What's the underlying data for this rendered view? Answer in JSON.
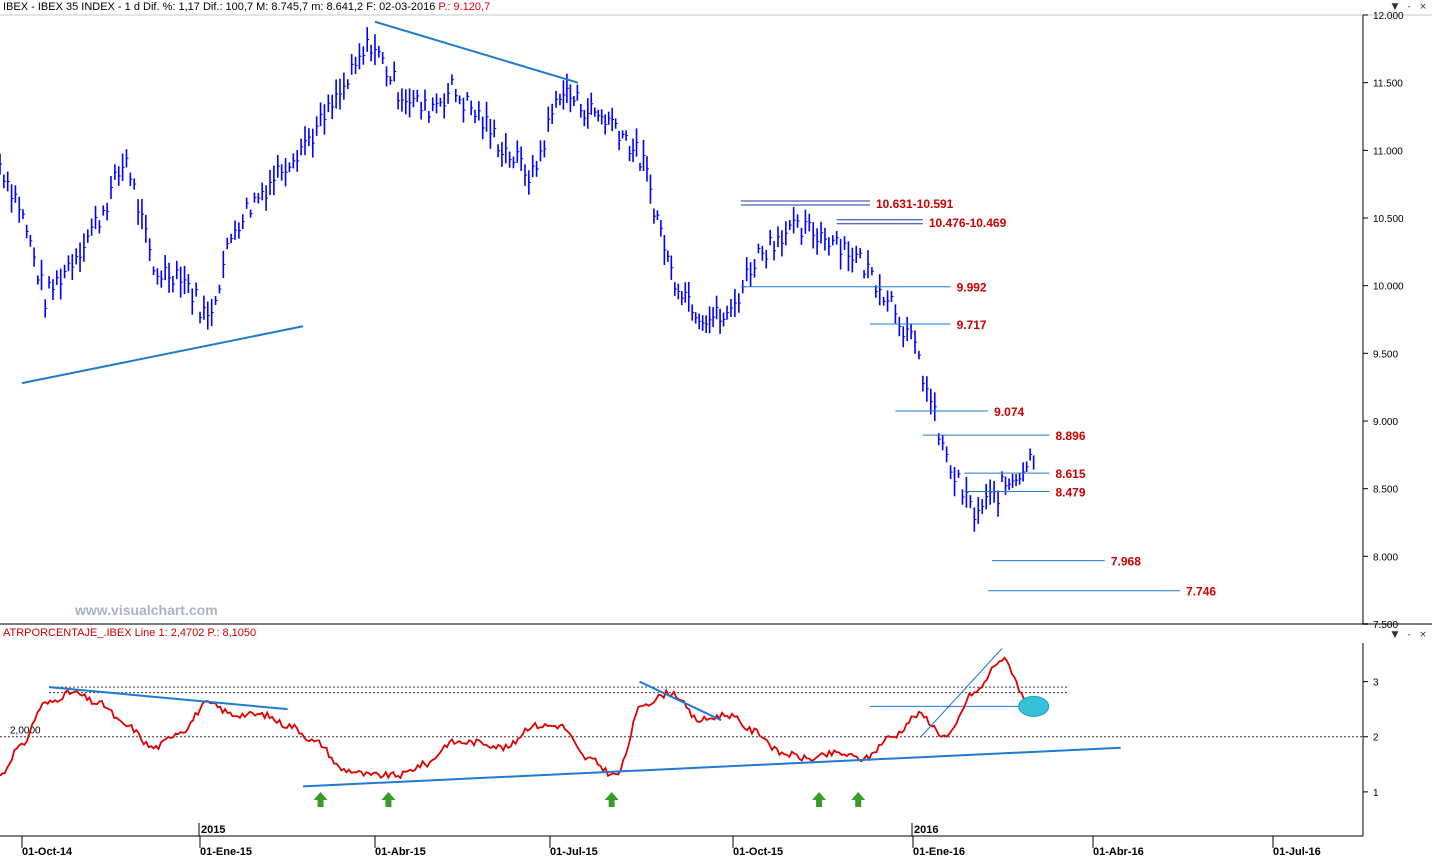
{
  "price_panel": {
    "header": {
      "symbol": "IBEX - IBEX 35 INDEX - 1 d",
      "dif_pct": "Dif. %: 1,17",
      "dif": "Dif.: 100,7",
      "max": "M: 8.745,7",
      "min": "m: 8.641,2",
      "date": "F: 02-03-2016",
      "p": "P.: 9.120,7"
    },
    "watermark": "www.visualchart.com"
  },
  "indicator_panel": {
    "header": {
      "name": "ATRPORCENTAJE_.IBEX",
      "line": "Line 1: 2,4702",
      "p": "P.: 8,1050"
    },
    "ref_line_label": "2,0000"
  },
  "window_buttons": [
    "▼",
    "-",
    "×"
  ],
  "colors": {
    "bars": "#0000ff",
    "trendline": "#1e7ad2",
    "level_label": "#cc0000",
    "indicator": "#e00000",
    "arrow": "#3a9a2a",
    "highlight": "#35c1d6"
  },
  "chart_data": [
    {
      "type": "bar",
      "subtype": "ohlc",
      "title": "IBEX - IBEX 35 INDEX - 1 d",
      "x": [
        "2014-09-15",
        "2014-09-29",
        "2014-10-13",
        "2014-10-27",
        "2014-11-10",
        "2014-11-24",
        "2014-12-08",
        "2014-12-22",
        "2015-01-05",
        "2015-01-19",
        "2015-02-02",
        "2015-02-16",
        "2015-03-02",
        "2015-03-16",
        "2015-03-30",
        "2015-04-13",
        "2015-04-27",
        "2015-05-11",
        "2015-05-25",
        "2015-06-08",
        "2015-06-22",
        "2015-07-06",
        "2015-07-20",
        "2015-08-03",
        "2015-08-17",
        "2015-08-31",
        "2015-09-14",
        "2015-09-28",
        "2015-10-12",
        "2015-10-26",
        "2015-11-09",
        "2015-11-23",
        "2015-12-07",
        "2015-12-21",
        "2016-01-04",
        "2016-01-18",
        "2016-02-01",
        "2016-02-15",
        "2016-03-02"
      ],
      "close": [
        10900,
        10600,
        9900,
        10200,
        10500,
        10950,
        10100,
        10100,
        9750,
        10450,
        10700,
        10950,
        11150,
        11450,
        11800,
        11450,
        11300,
        11450,
        11250,
        11000,
        10800,
        11450,
        11300,
        11200,
        10900,
        10100,
        9800,
        9750,
        10200,
        10400,
        10400,
        10350,
        10150,
        9900,
        9450,
        8700,
        8300,
        8500,
        8745.7
      ],
      "ylim": [
        7500,
        12000
      ],
      "y_ticks": [
        "7.500",
        "8.000",
        "8.500",
        "9.000",
        "9.500",
        "10.000",
        "10.500",
        "11.000",
        "11.500",
        "12.000"
      ],
      "x_ticks": [
        "01-Oct-14",
        "01-Ene-15",
        "01-Abr-15",
        "01-Jul-15",
        "01-Oct-15",
        "01-Ene-16",
        "01-Abr-16",
        "01-Jul-16"
      ],
      "year_labels": [
        "2015",
        "2016"
      ],
      "levels": [
        {
          "label": "10.631-10.591",
          "value": 10611
        },
        {
          "label": "10.476-10.469",
          "value": 10472
        },
        {
          "label": "9.992",
          "value": 9992
        },
        {
          "label": "9.717",
          "value": 9717
        },
        {
          "label": "9.074",
          "value": 9074
        },
        {
          "label": "8.896",
          "value": 8896
        },
        {
          "label": "8.615",
          "value": 8615
        },
        {
          "label": "8.479",
          "value": 8479
        },
        {
          "label": "7.968",
          "value": 7968
        },
        {
          "label": "7.746",
          "value": 7746
        }
      ],
      "trendlines": [
        {
          "from": [
            "2014-10-01",
            9280
          ],
          "to": [
            "2015-02-23",
            9700
          ]
        },
        {
          "from": [
            "2015-04-01",
            11950
          ],
          "to": [
            "2015-07-15",
            11500
          ]
        }
      ]
    },
    {
      "type": "line",
      "title": "ATRPORCENTAJE_.IBEX",
      "x": [
        "2014-09-15",
        "2014-09-29",
        "2014-10-13",
        "2014-10-27",
        "2014-11-10",
        "2014-11-24",
        "2014-12-08",
        "2014-12-22",
        "2015-01-05",
        "2015-01-19",
        "2015-02-02",
        "2015-02-16",
        "2015-03-02",
        "2015-03-16",
        "2015-03-30",
        "2015-04-13",
        "2015-04-27",
        "2015-05-11",
        "2015-05-25",
        "2015-06-08",
        "2015-06-22",
        "2015-07-06",
        "2015-07-20",
        "2015-08-03",
        "2015-08-17",
        "2015-08-31",
        "2015-09-14",
        "2015-09-28",
        "2015-10-12",
        "2015-10-26",
        "2015-11-09",
        "2015-11-23",
        "2015-12-07",
        "2015-12-21",
        "2016-01-04",
        "2016-01-18",
        "2016-02-01",
        "2016-02-15",
        "2016-03-02"
      ],
      "series": [
        {
          "values": [
            1.3,
            1.8,
            2.6,
            2.8,
            2.6,
            2.2,
            1.8,
            2.1,
            2.6,
            2.4,
            2.4,
            2.2,
            1.9,
            1.4,
            1.3,
            1.3,
            1.5,
            1.9,
            1.9,
            1.8,
            2.2,
            2.2,
            1.6,
            1.3,
            2.6,
            2.8,
            2.3,
            2.4,
            2.1,
            1.7,
            1.6,
            1.7,
            1.6,
            2.0,
            2.4,
            2.0,
            2.8,
            3.4,
            2.47
          ]
        }
      ],
      "ylim": [
        0.2,
        3.7
      ],
      "y_ticks": [
        "1",
        "2",
        "3"
      ],
      "ref_lines": [
        2.0,
        2.8,
        2.9
      ],
      "ref_label": "2,0000",
      "trendlines": [
        {
          "from": [
            "2015-02-23",
            1.1
          ],
          "to": [
            "2016-04-15",
            1.8
          ]
        },
        {
          "from": [
            "2014-10-15",
            2.9
          ],
          "to": [
            "2015-02-15",
            2.5
          ]
        },
        {
          "from": [
            "2015-08-15",
            3.0
          ],
          "to": [
            "2015-09-25",
            2.3
          ]
        },
        {
          "from": [
            "2016-01-05",
            2.0
          ],
          "to": [
            "2016-02-15",
            3.6
          ]
        }
      ],
      "arrows": [
        "2015-03-04",
        "2015-04-08",
        "2015-08-01",
        "2015-11-14",
        "2015-12-04"
      ],
      "highlight": [
        "2016-03-02",
        2.55
      ]
    }
  ]
}
